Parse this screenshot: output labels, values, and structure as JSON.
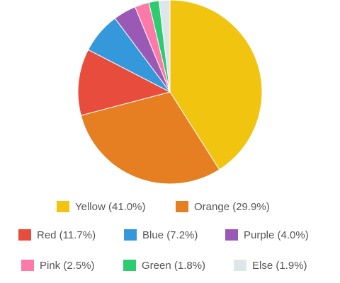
{
  "chart_data": {
    "type": "pie",
    "labels": [
      "Yellow (41.0%)",
      "Orange (29.9%)",
      "Red (11.7%)",
      "Blue (7.2%)",
      "Purple (4.0%)",
      "Pink (2.5%)",
      "Green (1.8%)",
      "Else (1.9%)"
    ],
    "values": [
      41.0,
      29.9,
      11.7,
      7.2,
      4.0,
      2.5,
      1.8,
      1.9
    ],
    "colors": [
      "#f1c40f",
      "#e67e22",
      "#e74c3c",
      "#3498db",
      "#9b59b6",
      "#fd79a8",
      "#2ecc71",
      "#dfe6e9"
    ]
  }
}
